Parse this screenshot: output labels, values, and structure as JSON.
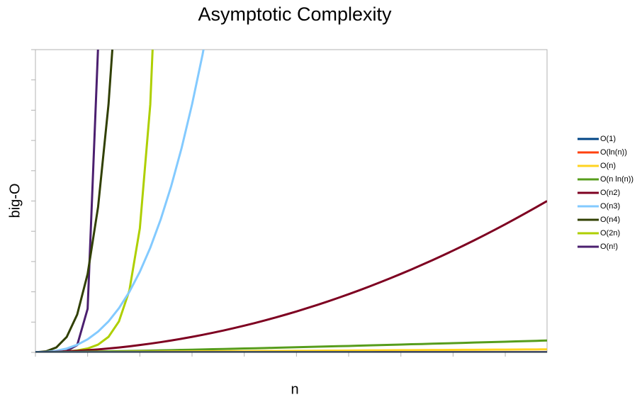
{
  "chart_data": {
    "type": "line",
    "title": "Asymptotic Complexity",
    "x_label": "n",
    "y_label": "big-O",
    "x": [
      1,
      2,
      3,
      4,
      5,
      6,
      7,
      8,
      9,
      10,
      11,
      12,
      13,
      14,
      15,
      16,
      17,
      18,
      19,
      20,
      21,
      22,
      23,
      24,
      25,
      26,
      27,
      28,
      29,
      30,
      31,
      32,
      33,
      34,
      35,
      36,
      37,
      38,
      39,
      40,
      41,
      42,
      43,
      44,
      45,
      46,
      47,
      48,
      49,
      50
    ],
    "xlim": [
      1,
      50
    ],
    "xticks": [
      1,
      6,
      11,
      16,
      21,
      26,
      31,
      36,
      41,
      46
    ],
    "ylim": [
      0,
      5000
    ],
    "yticks": [
      0,
      500,
      1000,
      1500,
      2000,
      2500,
      3000,
      3500,
      4000,
      4500,
      5000
    ],
    "legend": "right",
    "series": [
      {
        "name": "O(1)",
        "color": "#004586",
        "values": [
          1,
          1,
          1,
          1,
          1,
          1,
          1,
          1,
          1,
          1,
          1,
          1,
          1,
          1,
          1,
          1,
          1,
          1,
          1,
          1,
          1,
          1,
          1,
          1,
          1,
          1,
          1,
          1,
          1,
          1,
          1,
          1,
          1,
          1,
          1,
          1,
          1,
          1,
          1,
          1,
          1,
          1,
          1,
          1,
          1,
          1,
          1,
          1,
          1,
          1
        ]
      },
      {
        "name": "O(ln(n))",
        "color": "#ff420e",
        "values": [
          0,
          1,
          1,
          1,
          2,
          2,
          2,
          2,
          2,
          2,
          2,
          2,
          3,
          3,
          3,
          3,
          3,
          3,
          3,
          3,
          3,
          3,
          3,
          3,
          3,
          3,
          3,
          3,
          3,
          3,
          3,
          3,
          3,
          4,
          4,
          4,
          4,
          4,
          4,
          4,
          4,
          4,
          4,
          4,
          4,
          4,
          4,
          4,
          4,
          4
        ]
      },
      {
        "name": "O(n)",
        "color": "#ffd320",
        "values": [
          1,
          2,
          3,
          4,
          5,
          6,
          7,
          8,
          9,
          10,
          11,
          12,
          13,
          14,
          15,
          16,
          17,
          18,
          19,
          20,
          21,
          22,
          23,
          24,
          25,
          26,
          27,
          28,
          29,
          30,
          31,
          32,
          33,
          34,
          35,
          36,
          37,
          38,
          39,
          40,
          41,
          42,
          43,
          44,
          45,
          46,
          47,
          48,
          49,
          50
        ]
      },
      {
        "name": "O(n ln(n))",
        "color": "#579d1c",
        "values": [
          0,
          1,
          3,
          6,
          8,
          11,
          14,
          17,
          20,
          23,
          26,
          30,
          33,
          37,
          41,
          44,
          48,
          52,
          56,
          60,
          64,
          68,
          72,
          76,
          80,
          85,
          89,
          93,
          98,
          102,
          106,
          111,
          115,
          120,
          124,
          129,
          134,
          138,
          143,
          148,
          152,
          157,
          162,
          167,
          171,
          176,
          181,
          186,
          191,
          196
        ]
      },
      {
        "name": "O(n2)",
        "color": "#7e0021",
        "values": [
          1,
          4,
          9,
          16,
          25,
          36,
          49,
          64,
          81,
          100,
          121,
          144,
          169,
          196,
          225,
          256,
          289,
          324,
          361,
          400,
          441,
          484,
          529,
          576,
          625,
          676,
          729,
          784,
          841,
          900,
          961,
          1024,
          1089,
          1156,
          1225,
          1296,
          1369,
          1444,
          1521,
          1600,
          1681,
          1764,
          1849,
          1936,
          2025,
          2116,
          2209,
          2304,
          2401,
          2500
        ]
      },
      {
        "name": "O(n3)",
        "color": "#83caff",
        "values": [
          1,
          8,
          27,
          64,
          125,
          216,
          343,
          512,
          729,
          1000,
          1331,
          1728,
          2197,
          2744,
          3375,
          4096,
          4913,
          5832,
          null,
          null,
          null,
          null,
          null,
          null,
          null,
          null,
          null,
          null,
          null,
          null,
          null,
          null,
          null,
          null,
          null,
          null,
          null,
          null,
          null,
          null,
          null,
          null,
          null,
          null,
          null,
          null,
          null,
          null,
          null,
          null
        ]
      },
      {
        "name": "O(n4)",
        "color": "#314004",
        "values": [
          1,
          16,
          81,
          256,
          625,
          1296,
          2401,
          4096,
          6561,
          null,
          null,
          null,
          null,
          null,
          null,
          null,
          null,
          null,
          null,
          null,
          null,
          null,
          null,
          null,
          null,
          null,
          null,
          null,
          null,
          null,
          null,
          null,
          null,
          null,
          null,
          null,
          null,
          null,
          null,
          null,
          null,
          null,
          null,
          null,
          null,
          null,
          null,
          null,
          null,
          null
        ]
      },
      {
        "name": "O(2n)",
        "color": "#aecf00",
        "values": [
          2,
          4,
          8,
          16,
          32,
          64,
          128,
          256,
          512,
          1024,
          2048,
          4096,
          8192,
          null,
          null,
          null,
          null,
          null,
          null,
          null,
          null,
          null,
          null,
          null,
          null,
          null,
          null,
          null,
          null,
          null,
          null,
          null,
          null,
          null,
          null,
          null,
          null,
          null,
          null,
          null,
          null,
          null,
          null,
          null,
          null,
          null,
          null,
          null,
          null,
          null
        ]
      },
      {
        "name": "O(n!)",
        "color": "#4b1f6f",
        "values": [
          1,
          2,
          6,
          24,
          120,
          720,
          5040,
          null,
          null,
          null,
          null,
          null,
          null,
          null,
          null,
          null,
          null,
          null,
          null,
          null,
          null,
          null,
          null,
          null,
          null,
          null,
          null,
          null,
          null,
          null,
          null,
          null,
          null,
          null,
          null,
          null,
          null,
          null,
          null,
          null,
          null,
          null,
          null,
          null,
          null,
          null,
          null,
          null,
          null,
          null
        ]
      }
    ]
  }
}
